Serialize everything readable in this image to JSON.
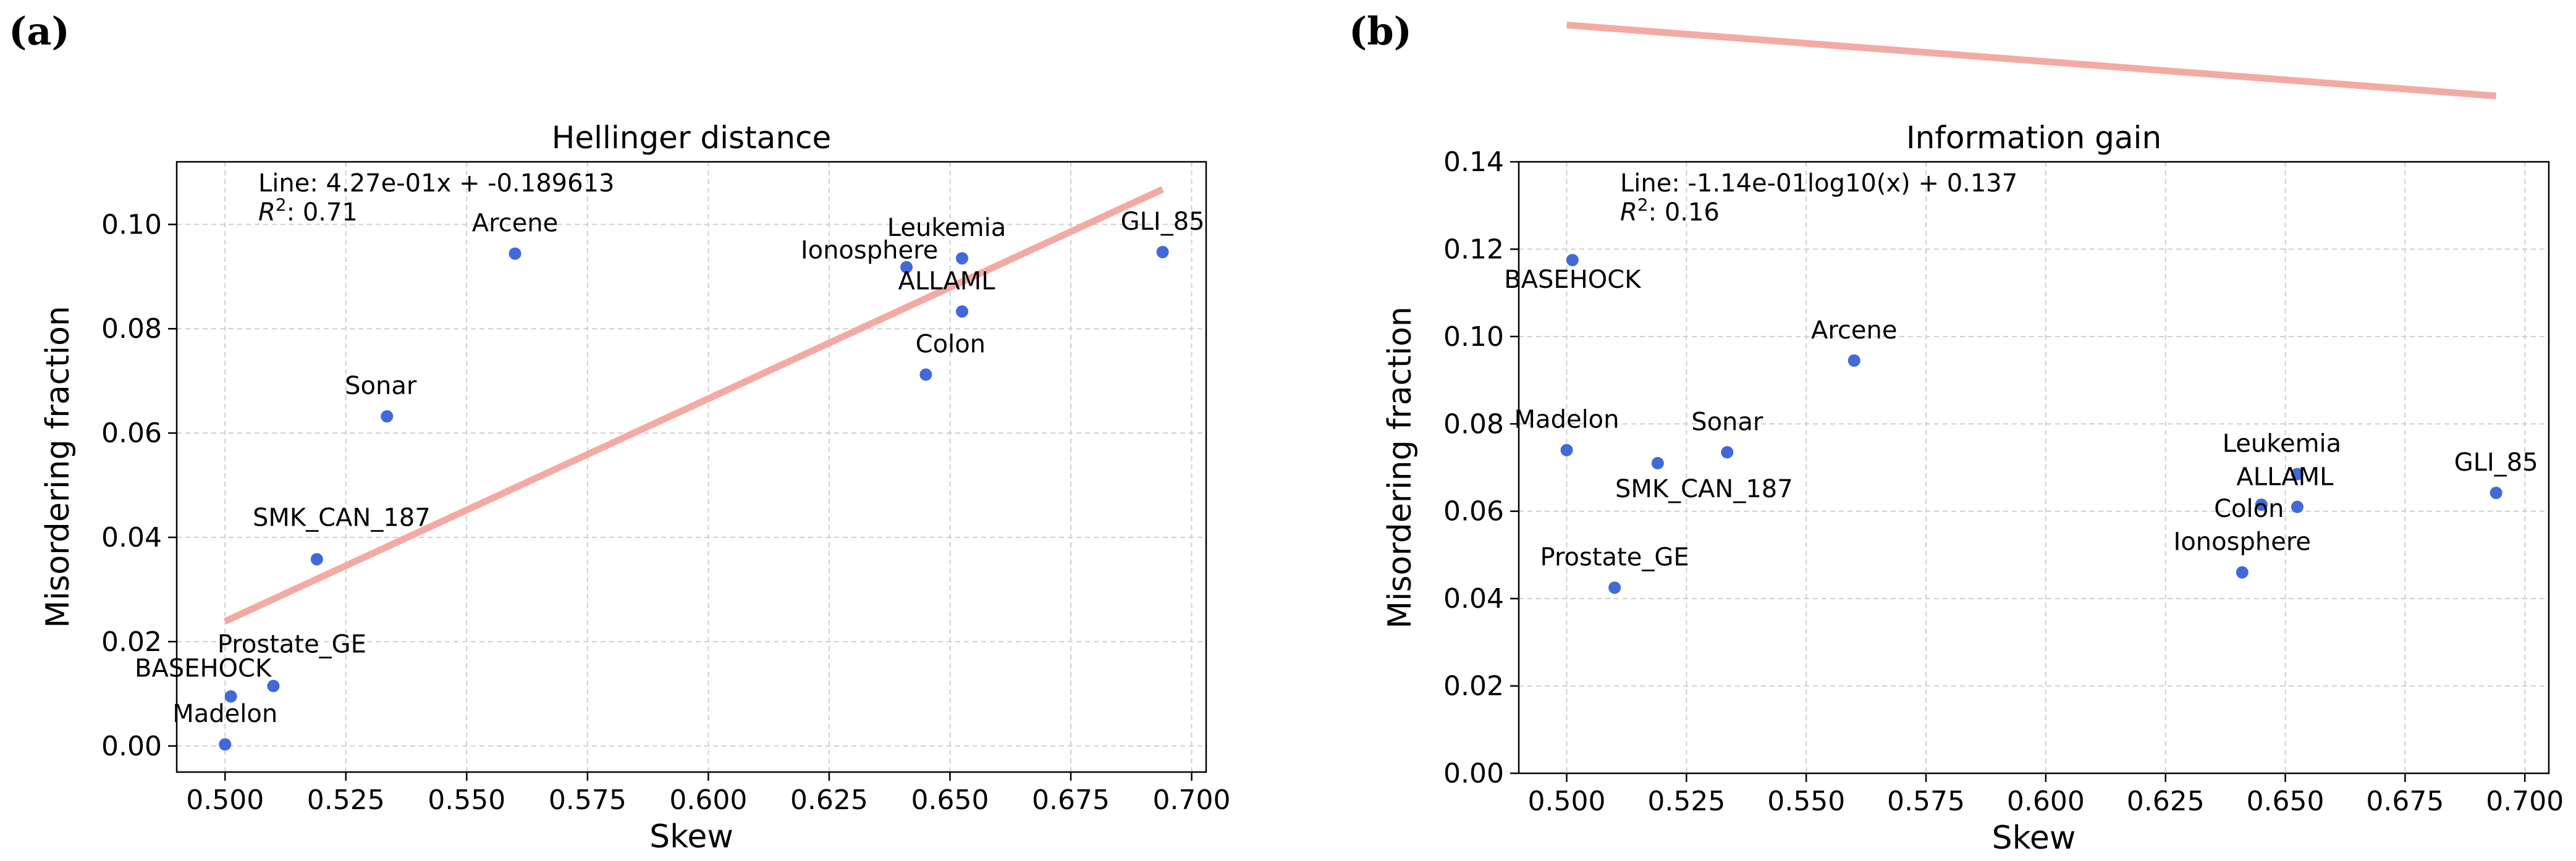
{
  "panels": [
    {
      "label": "(a)"
    },
    {
      "label": "(b)"
    }
  ],
  "chart_data": [
    {
      "type": "scatter",
      "title": "Hellinger distance",
      "xlabel": "Skew",
      "ylabel": "Misordering fraction",
      "xlim": [
        0.49,
        0.703
      ],
      "ylim": [
        -0.005,
        0.112
      ],
      "xticks": [
        0.5,
        0.525,
        0.55,
        0.575,
        0.6,
        0.625,
        0.65,
        0.675,
        0.7
      ],
      "xtick_labels": [
        "0.500",
        "0.525",
        "0.550",
        "0.575",
        "0.600",
        "0.625",
        "0.650",
        "0.675",
        "0.700"
      ],
      "yticks": [
        0.0,
        0.02,
        0.04,
        0.06,
        0.08,
        0.1
      ],
      "ytick_labels": [
        "0.00",
        "0.02",
        "0.04",
        "0.06",
        "0.08",
        "0.10"
      ],
      "grid": true,
      "points": [
        {
          "name": "Madelon",
          "x": 0.5,
          "y": 0.0003
        },
        {
          "name": "BASEHOCK",
          "x": 0.5012,
          "y": 0.0095
        },
        {
          "name": "Prostate_GE",
          "x": 0.51,
          "y": 0.0115
        },
        {
          "name": "SMK_CAN_187",
          "x": 0.519,
          "y": 0.0358
        },
        {
          "name": "Sonar",
          "x": 0.5335,
          "y": 0.0632
        },
        {
          "name": "Arcene",
          "x": 0.56,
          "y": 0.0944
        },
        {
          "name": "Ionosphere",
          "x": 0.641,
          "y": 0.0918
        },
        {
          "name": "Leukemia",
          "x": 0.6525,
          "y": 0.0935
        },
        {
          "name": "ALLAML",
          "x": 0.6525,
          "y": 0.0833
        },
        {
          "name": "Colon",
          "x": 0.645,
          "y": 0.0712
        },
        {
          "name": "GLI_85",
          "x": 0.694,
          "y": 0.0947
        }
      ],
      "fit": {
        "kind": "linear",
        "slope": 0.427,
        "intercept": -0.189613,
        "x_range": [
          0.5,
          0.694
        ]
      },
      "annotation_line": "Line: 4.27e-01x + -0.189613",
      "annotation_r2_prefix": "R",
      "annotation_r2_sup": "2",
      "annotation_r2_value": ": 0.71"
    },
    {
      "type": "scatter",
      "title": "Information gain",
      "xlabel": "Skew",
      "ylabel": "Misordering fraction",
      "xlim": [
        0.49,
        0.705
      ],
      "ylim": [
        0.0,
        0.14
      ],
      "xticks": [
        0.5,
        0.525,
        0.55,
        0.575,
        0.6,
        0.625,
        0.65,
        0.675,
        0.7
      ],
      "xtick_labels": [
        "0.500",
        "0.525",
        "0.550",
        "0.575",
        "0.600",
        "0.625",
        "0.650",
        "0.675",
        "0.700"
      ],
      "yticks": [
        0.0,
        0.02,
        0.04,
        0.06,
        0.08,
        0.1,
        0.12,
        0.14
      ],
      "ytick_labels": [
        "0.00",
        "0.02",
        "0.04",
        "0.06",
        "0.08",
        "0.10",
        "0.12",
        "0.14"
      ],
      "grid": true,
      "points": [
        {
          "name": "BASEHOCK",
          "x": 0.5012,
          "y": 0.1175
        },
        {
          "name": "Arcene",
          "x": 0.56,
          "y": 0.0945
        },
        {
          "name": "Madelon",
          "x": 0.5,
          "y": 0.074
        },
        {
          "name": "SMK_CAN_187",
          "x": 0.519,
          "y": 0.071
        },
        {
          "name": "Sonar",
          "x": 0.5335,
          "y": 0.0735
        },
        {
          "name": "Prostate_GE",
          "x": 0.51,
          "y": 0.0425
        },
        {
          "name": "Leukemia",
          "x": 0.6525,
          "y": 0.0685
        },
        {
          "name": "ALLAML",
          "x": 0.6525,
          "y": 0.061
        },
        {
          "name": "Colon",
          "x": 0.645,
          "y": 0.0615
        },
        {
          "name": "Ionosphere",
          "x": 0.641,
          "y": 0.046
        },
        {
          "name": "GLI_85",
          "x": 0.694,
          "y": 0.0642
        }
      ],
      "fit": {
        "kind": "log10",
        "slope": -0.114,
        "intercept": 0.137,
        "x_range": [
          0.5,
          0.694
        ]
      },
      "annotation_line": "Line: -1.14e-01log10(x) + 0.137",
      "annotation_r2_prefix": "R",
      "annotation_r2_sup": "2",
      "annotation_r2_value": ": 0.16"
    }
  ],
  "colors": {
    "point": "#4169d8",
    "fit_line": "#f4aaa4",
    "grid": "#cfcfcf",
    "axis": "#000000"
  }
}
